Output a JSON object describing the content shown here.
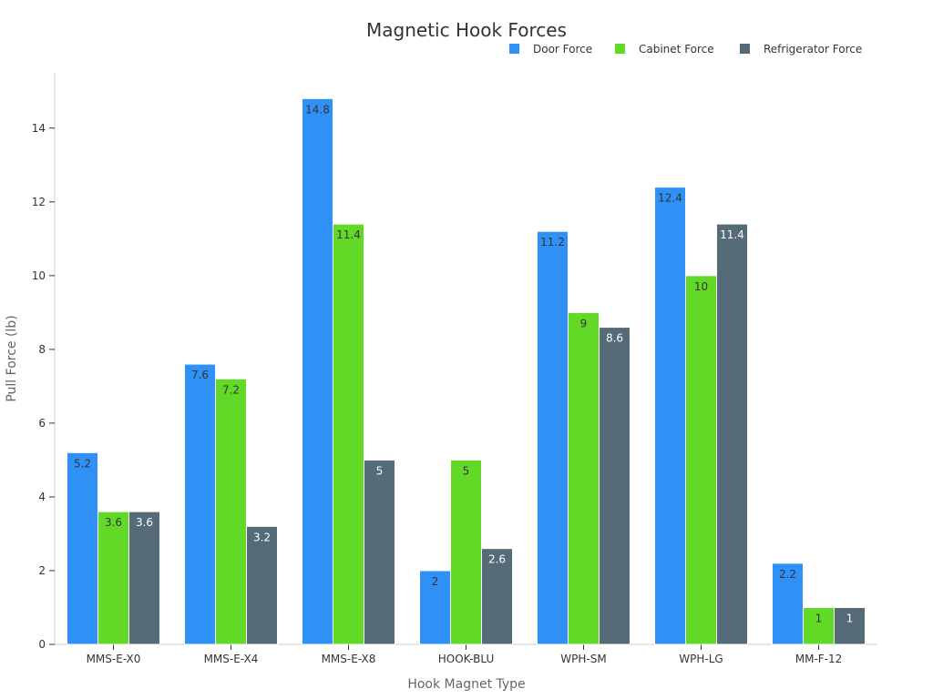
{
  "chart_data": {
    "type": "bar",
    "title": "Magnetic Hook Forces",
    "xlabel": "Hook Magnet Type",
    "ylabel": "Pull Force (lb)",
    "ylim": [
      0,
      15.5
    ],
    "yticks": [
      0,
      2,
      4,
      6,
      8,
      10,
      12,
      14
    ],
    "grid": false,
    "legend_position": "top-right",
    "categories": [
      "MMS-E-X0",
      "MMS-E-X4",
      "MMS-E-X8",
      "HOOK-BLU",
      "WPH-SM",
      "WPH-LG",
      "MM-F-12"
    ],
    "series": [
      {
        "name": "Door Force",
        "color": "#2f91f5",
        "label_color": "#333333",
        "values": [
          5.2,
          7.6,
          14.8,
          2,
          11.2,
          12.4,
          2.2
        ]
      },
      {
        "name": "Cabinet Force",
        "color": "#63d927",
        "label_color": "#333333",
        "values": [
          3.6,
          7.2,
          11.4,
          5,
          9,
          10,
          1
        ]
      },
      {
        "name": "Refrigerator Force",
        "color": "#556b77",
        "label_color": "#ffffff",
        "values": [
          3.6,
          3.2,
          5,
          2.6,
          8.6,
          11.4,
          1
        ]
      }
    ]
  }
}
